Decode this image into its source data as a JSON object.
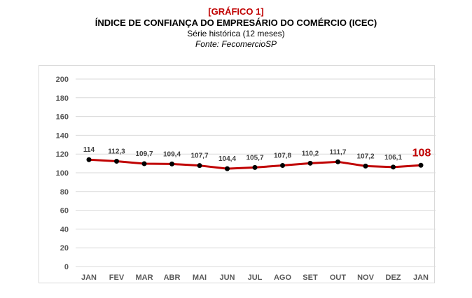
{
  "header": {
    "tag": "[GRÁFICO 1]",
    "title": "ÍNDICE DE CONFIANÇA DO EMPRESÁRIO DO COMÉRCIO (ICEC)",
    "subtitle": "Série histórica (12 meses)",
    "source": "Fonte: FecomercioSP"
  },
  "colors": {
    "accent": "#c00000",
    "line": "#c00000",
    "marker": "#000000",
    "grid": "#d9d9d9",
    "tick": "#595959"
  },
  "chart_data": {
    "type": "line",
    "title": "ÍNDICE DE CONFIANÇA DO EMPRESÁRIO DO COMÉRCIO (ICEC)",
    "subtitle": "Série histórica (12 meses)",
    "xlabel": "",
    "ylabel": "",
    "categories": [
      "JAN",
      "FEV",
      "MAR",
      "ABR",
      "MAI",
      "JUN",
      "JUL",
      "AGO",
      "SET",
      "OUT",
      "NOV",
      "DEZ",
      "JAN"
    ],
    "series": [
      {
        "values": [
          114,
          112.3,
          109.7,
          109.4,
          107.7,
          104.4,
          105.7,
          107.8,
          110.2,
          111.7,
          107.2,
          106.1,
          108
        ],
        "data_labels": [
          "114",
          "112,3",
          "109,7",
          "109,4",
          "107,7",
          "104,4",
          "105,7",
          "107,8",
          "110,2",
          "111,7",
          "107,2",
          "106,1",
          "108"
        ]
      }
    ],
    "ylim": [
      0,
      200
    ],
    "yticks": [
      0,
      20,
      40,
      60,
      80,
      100,
      120,
      140,
      160,
      180,
      200
    ],
    "grid": true,
    "legend": "none",
    "highlight_last": true
  }
}
